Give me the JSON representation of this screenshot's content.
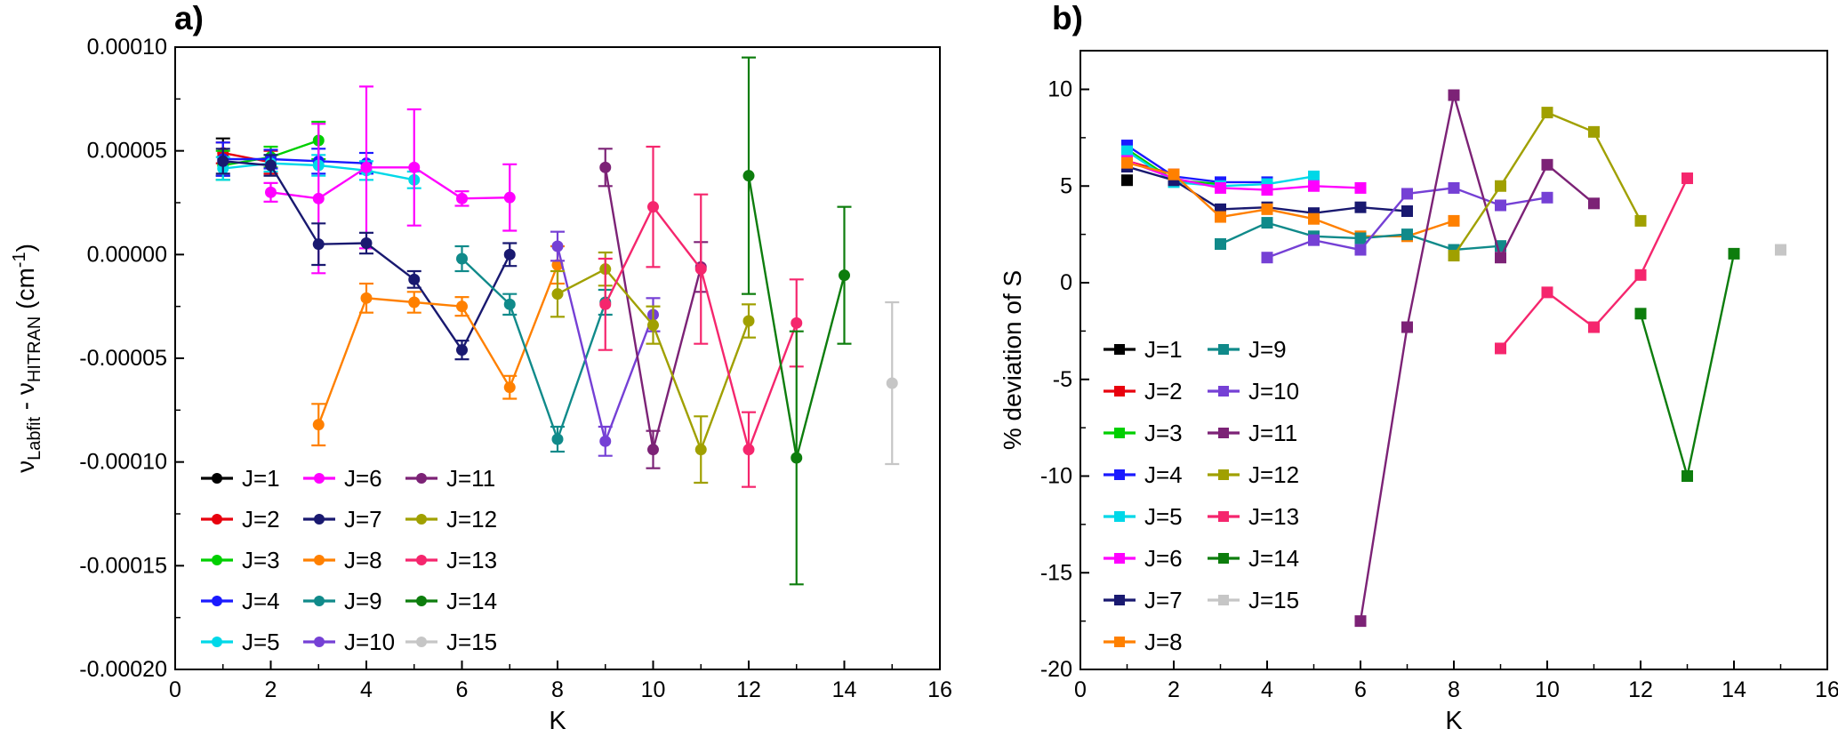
{
  "chart_data": [
    {
      "id": "a",
      "type": "scatter",
      "title": "a)",
      "marker": "circle",
      "error_bars": true,
      "xlabel": "K",
      "ylabel_parts": [
        {
          "t": "ν",
          "s": "normal"
        },
        {
          "t": "Labfit",
          "s": "sub"
        },
        {
          "t": " - ν",
          "s": "normal"
        },
        {
          "t": "HITRAN",
          "s": "sub"
        },
        {
          "t": " (cm",
          "s": "normal"
        },
        {
          "t": "-1",
          "s": "sup"
        },
        {
          "t": ")",
          "s": "normal"
        }
      ],
      "xlim": [
        0,
        16
      ],
      "ylim": [
        -0.0002,
        0.0001
      ],
      "xticks": [
        0,
        2,
        4,
        6,
        8,
        10,
        12,
        14,
        16
      ],
      "xtick_labels": [
        "0",
        "2",
        "4",
        "6",
        "8",
        "10",
        "12",
        "14",
        "16"
      ],
      "yticks": [
        0.0001,
        5e-05,
        0,
        -5e-05,
        -0.0001,
        -0.00015,
        -0.0002
      ],
      "ytick_labels": [
        "0.00010",
        "0.00005",
        "0.00000",
        "-0.00005",
        "-0.00010",
        "-0.00015",
        "-0.00020"
      ],
      "grid": false,
      "legend_position": "bottom-left",
      "series": [
        {
          "name": "J=1",
          "color": "#000000",
          "points": [
            [
              1,
              4.7e-05,
              9e-06
            ]
          ]
        },
        {
          "name": "J=2",
          "color": "#e8000d",
          "points": [
            [
              1,
              4.9e-05,
              5e-06
            ],
            [
              2,
              4.45e-05,
              5.5e-06
            ]
          ]
        },
        {
          "name": "J=3",
          "color": "#00cf00",
          "points": [
            [
              1,
              4.3e-05,
              7e-06
            ],
            [
              2,
              4.7e-05,
              5e-06
            ],
            [
              3,
              5.5e-05,
              9e-06
            ]
          ]
        },
        {
          "name": "J=4",
          "color": "#1a1aff",
          "points": [
            [
              1,
              4.6e-05,
              8e-06
            ],
            [
              2,
              4.6e-05,
              4.5e-06
            ],
            [
              3,
              4.5e-05,
              6e-06
            ],
            [
              4,
              4.4e-05,
              5e-06
            ]
          ]
        },
        {
          "name": "J=5",
          "color": "#00d8e8",
          "points": [
            [
              1,
              4.15e-05,
              5.5e-06
            ],
            [
              2,
              4.4e-05,
              4e-06
            ],
            [
              3,
              4.3e-05,
              5e-06
            ],
            [
              4,
              4.05e-05,
              4.5e-06
            ],
            [
              5,
              3.6e-05,
              4e-06
            ]
          ]
        },
        {
          "name": "J=6",
          "color": "#ff00ff",
          "points": [
            [
              2,
              3e-05,
              4.5e-06
            ],
            [
              3,
              2.7e-05,
              3.6e-05
            ],
            [
              4,
              4.2e-05,
              3.9e-05
            ],
            [
              5,
              4.2e-05,
              2.8e-05
            ],
            [
              6,
              2.7e-05,
              3.5e-06
            ],
            [
              7,
              2.75e-05,
              1.6e-05
            ]
          ]
        },
        {
          "name": "J=7",
          "color": "#191970",
          "points": [
            [
              1,
              4.5e-05,
              6e-06
            ],
            [
              2,
              4.3e-05,
              5e-06
            ],
            [
              3,
              5e-06,
              1e-05
            ],
            [
              4,
              5.5e-06,
              5e-06
            ],
            [
              5,
              -1.2e-05,
              4e-06
            ],
            [
              6,
              -4.6e-05,
              4.5e-06
            ],
            [
              7,
              0,
              5.5e-06
            ]
          ]
        },
        {
          "name": "J=8",
          "color": "#ff8000",
          "points": [
            [
              3,
              -8.2e-05,
              1e-05
            ],
            [
              4,
              -2.1e-05,
              7e-06
            ],
            [
              5,
              -2.3e-05,
              5e-06
            ],
            [
              6,
              -2.5e-05,
              4.5e-06
            ],
            [
              7,
              -6.4e-05,
              5.5e-06
            ],
            [
              8,
              -5e-06,
              9e-06
            ]
          ]
        },
        {
          "name": "J=9",
          "color": "#108a8a",
          "points": [
            [
              6,
              -2e-06,
              6e-06
            ],
            [
              7,
              -2.4e-05,
              5e-06
            ],
            [
              8,
              -8.9e-05,
              6e-06
            ],
            [
              9,
              -2.3e-05,
              6e-06
            ]
          ]
        },
        {
          "name": "J=10",
          "color": "#7540d5",
          "points": [
            [
              8,
              4e-06,
              7e-06
            ],
            [
              9,
              -9e-05,
              7e-06
            ],
            [
              10,
              -2.9e-05,
              8e-06
            ]
          ]
        },
        {
          "name": "J=11",
          "color": "#7c2276",
          "points": [
            [
              9,
              4.2e-05,
              9e-06
            ],
            [
              10,
              -9.4e-05,
              9e-06
            ],
            [
              11,
              -6e-06,
              1.2e-05
            ]
          ]
        },
        {
          "name": "J=12",
          "color": "#a0a000",
          "points": [
            [
              8,
              -1.9e-05,
              1.1e-05
            ],
            [
              9,
              -7e-06,
              8e-06
            ],
            [
              10,
              -3.4e-05,
              9e-06
            ],
            [
              11,
              -9.4e-05,
              1.6e-05
            ],
            [
              12,
              -3.2e-05,
              8e-06
            ]
          ]
        },
        {
          "name": "J=13",
          "color": "#f5266d",
          "points": [
            [
              9,
              -2.4e-05,
              2.2e-05
            ],
            [
              10,
              2.3e-05,
              2.9e-05
            ],
            [
              11,
              -7e-06,
              3.6e-05
            ],
            [
              12,
              -9.4e-05,
              1.8e-05
            ],
            [
              13,
              -3.3e-05,
              2.1e-05
            ]
          ]
        },
        {
          "name": "J=14",
          "color": "#0d7d0d",
          "points": [
            [
              12,
              3.8e-05,
              5.7e-05
            ],
            [
              13,
              -9.8e-05,
              6.1e-05
            ],
            [
              14,
              -1e-05,
              3.3e-05
            ]
          ]
        },
        {
          "name": "J=15",
          "color": "#c6c6c6",
          "points": [
            [
              15,
              -6.2e-05,
              3.9e-05
            ]
          ]
        }
      ]
    },
    {
      "id": "b",
      "type": "line",
      "title": "b)",
      "marker": "square",
      "error_bars": false,
      "xlabel": "K",
      "ylabel_parts": [
        {
          "t": "% deviation of S",
          "s": "normal"
        }
      ],
      "xlim": [
        0,
        16
      ],
      "ylim": [
        -20,
        12
      ],
      "xticks": [
        0,
        2,
        4,
        6,
        8,
        10,
        12,
        14,
        16
      ],
      "xtick_labels": [
        "0",
        "2",
        "4",
        "6",
        "8",
        "10",
        "12",
        "14",
        "16"
      ],
      "yticks": [
        10,
        5,
        0,
        -5,
        -10,
        -15,
        -20
      ],
      "ytick_labels": [
        "10",
        "5",
        "0",
        "-5",
        "-10",
        "-15",
        "-20"
      ],
      "grid": false,
      "legend_position": "middle-left",
      "series": [
        {
          "name": "J=1",
          "color": "#000000",
          "points": [
            [
              1,
              5.3
            ]
          ]
        },
        {
          "name": "J=2",
          "color": "#e8000d",
          "points": [
            [
              1,
              6.3
            ],
            [
              2,
              5.6
            ]
          ]
        },
        {
          "name": "J=3",
          "color": "#00cf00",
          "points": [
            [
              1,
              6.9
            ],
            [
              2,
              5.3
            ],
            [
              3,
              5.1
            ]
          ]
        },
        {
          "name": "J=4",
          "color": "#1a1aff",
          "points": [
            [
              1,
              7.1
            ],
            [
              2,
              5.5
            ],
            [
              3,
              5.2
            ],
            [
              4,
              5.2
            ]
          ]
        },
        {
          "name": "J=5",
          "color": "#00d8e8",
          "points": [
            [
              1,
              6.8
            ],
            [
              2,
              5.2
            ],
            [
              3,
              5.0
            ],
            [
              4,
              5.1
            ],
            [
              5,
              5.5
            ]
          ]
        },
        {
          "name": "J=6",
          "color": "#ff00ff",
          "points": [
            [
              1,
              6.3
            ],
            [
              2,
              5.4
            ],
            [
              3,
              4.9
            ],
            [
              4,
              4.8
            ],
            [
              5,
              5.0
            ],
            [
              6,
              4.9
            ]
          ]
        },
        {
          "name": "J=7",
          "color": "#191970",
          "points": [
            [
              1,
              6.0
            ],
            [
              2,
              5.3
            ],
            [
              3,
              3.8
            ],
            [
              4,
              3.9
            ],
            [
              5,
              3.6
            ],
            [
              6,
              3.9
            ],
            [
              7,
              3.7
            ]
          ]
        },
        {
          "name": "J=8",
          "color": "#ff8000",
          "points": [
            [
              1,
              6.2
            ],
            [
              2,
              5.6
            ],
            [
              3,
              3.4
            ],
            [
              4,
              3.8
            ],
            [
              5,
              3.3
            ],
            [
              6,
              2.4
            ],
            [
              7,
              2.4
            ],
            [
              8,
              3.2
            ]
          ]
        },
        {
          "name": "J=9",
          "color": "#108a8a",
          "points": [
            [
              3,
              2.0
            ],
            [
              4,
              3.1
            ],
            [
              5,
              2.4
            ],
            [
              6,
              2.3
            ],
            [
              7,
              2.5
            ],
            [
              8,
              1.7
            ],
            [
              9,
              1.9
            ]
          ]
        },
        {
          "name": "J=10",
          "color": "#7540d5",
          "points": [
            [
              4,
              1.3
            ],
            [
              5,
              2.2
            ],
            [
              6,
              1.7
            ],
            [
              7,
              4.6
            ],
            [
              8,
              4.9
            ],
            [
              9,
              4.0
            ],
            [
              10,
              4.4
            ]
          ]
        },
        {
          "name": "J=11",
          "color": "#7c2276",
          "points": [
            [
              6,
              -17.5
            ],
            [
              7,
              -2.3
            ],
            [
              8,
              9.7
            ],
            [
              9,
              1.3
            ],
            [
              10,
              6.1
            ],
            [
              11,
              4.1
            ]
          ]
        },
        {
          "name": "J=12",
          "color": "#a0a000",
          "points": [
            [
              8,
              1.4
            ],
            [
              9,
              5.0
            ],
            [
              10,
              8.8
            ],
            [
              11,
              7.8
            ],
            [
              12,
              3.2
            ]
          ]
        },
        {
          "name": "J=13",
          "color": "#f5266d",
          "points": [
            [
              9,
              -3.4
            ],
            [
              10,
              -0.5
            ],
            [
              11,
              -2.3
            ],
            [
              12,
              0.4
            ],
            [
              13,
              5.4
            ]
          ]
        },
        {
          "name": "J=14",
          "color": "#0d7d0d",
          "points": [
            [
              12,
              -1.6
            ],
            [
              13,
              -10.0
            ],
            [
              14,
              1.5
            ]
          ]
        },
        {
          "name": "J=15",
          "color": "#c6c6c6",
          "points": [
            [
              15,
              1.7
            ]
          ]
        }
      ]
    }
  ]
}
